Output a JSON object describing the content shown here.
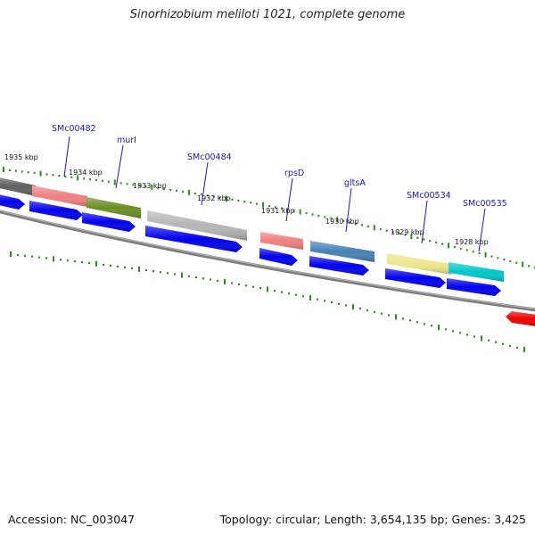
{
  "title": "Sinorhizobium meliloti 1021, complete genome",
  "accession": "Accession: NC_003047",
  "summary": "Topology: circular; Length: 3,654,135 bp; Genes: 3,425",
  "colors": {
    "backbone": "#7d7d7d",
    "tick": "#2e8b22",
    "label": "#1a1aa8",
    "forward_gene": "#0000ee",
    "reverse_gene": "#ee0000"
  },
  "ticks": [
    {
      "label": "1935 kbp"
    },
    {
      "label": "1934 kbp"
    },
    {
      "label": "1933 kbp"
    },
    {
      "label": "1932 kbp"
    },
    {
      "label": "1931 kbp"
    },
    {
      "label": "1930 kbp"
    },
    {
      "label": "1929 kbp"
    },
    {
      "label": "1928 kbp"
    }
  ],
  "gene_labels": [
    {
      "label": "SMc00482"
    },
    {
      "label": "murI"
    },
    {
      "label": "SMc00484"
    },
    {
      "label": "rpsD"
    },
    {
      "label": "gltsA"
    },
    {
      "label": "SMc00534"
    },
    {
      "label": "SMc00535"
    }
  ],
  "features": [
    {
      "name": "unlabeled-gene",
      "color": "#606060"
    },
    {
      "name": "SMc00482",
      "color": "#f08080"
    },
    {
      "name": "murI",
      "color": "#6b8e23"
    },
    {
      "name": "SMc00484",
      "color": "#b5b5b5"
    },
    {
      "name": "rpsD",
      "color": "#f08080"
    },
    {
      "name": "gltsA",
      "color": "#4682b4"
    },
    {
      "name": "SMc00534",
      "color": "#eee68c"
    },
    {
      "name": "SMc00535",
      "color": "#00c8c8"
    }
  ]
}
